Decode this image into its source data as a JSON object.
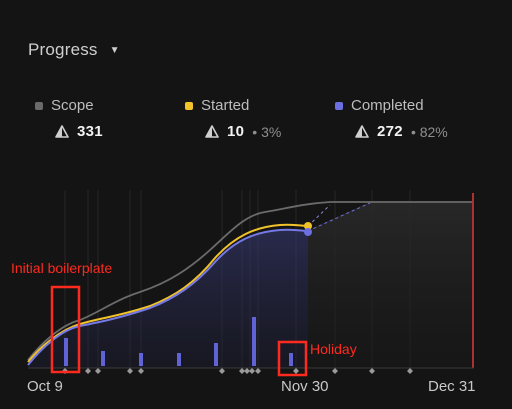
{
  "header": {
    "title": "Progress",
    "caret": "▼"
  },
  "stats": [
    {
      "label": "Scope",
      "value": "331",
      "percent": "",
      "color": "#6a6a6a"
    },
    {
      "label": "Started",
      "value": "10",
      "percent": "• 3%",
      "color": "#f2c22a"
    },
    {
      "label": "Completed",
      "value": "272",
      "percent": "• 82%",
      "color": "#6b6fe0"
    }
  ],
  "icons": {
    "estimate": "warning-triangle-icon"
  },
  "colors": {
    "scope_line": "#6b6b6b",
    "started_line": "#f2c22a",
    "completed_line": "#7479e6",
    "target_line": "#e23b3b",
    "annotation": "#ff2a1f"
  },
  "annotations": [
    {
      "label": "Initial boilerplate"
    },
    {
      "label": "Holiday"
    }
  ],
  "chart_data": {
    "type": "line",
    "x_axis_labels": [
      "Oct 9",
      "Nov 30",
      "Dec 31"
    ],
    "x": [
      "2023-10-09",
      "2023-10-13",
      "2023-10-20",
      "2023-10-27",
      "2023-11-03",
      "2023-11-10",
      "2023-11-17",
      "2023-11-24",
      "2023-11-30"
    ],
    "series": [
      {
        "name": "Scope",
        "values": [
          5,
          115,
          140,
          160,
          190,
          225,
          270,
          305,
          320
        ]
      },
      {
        "name": "Started",
        "values": [
          5,
          95,
          115,
          130,
          145,
          170,
          230,
          265,
          272
        ]
      },
      {
        "name": "Completed",
        "values": [
          5,
          92,
          110,
          125,
          140,
          160,
          220,
          258,
          268
        ]
      }
    ],
    "scope_final": 331,
    "target_date": "2023-12-31",
    "ylim": [
      0,
      340
    ],
    "grid": true
  }
}
